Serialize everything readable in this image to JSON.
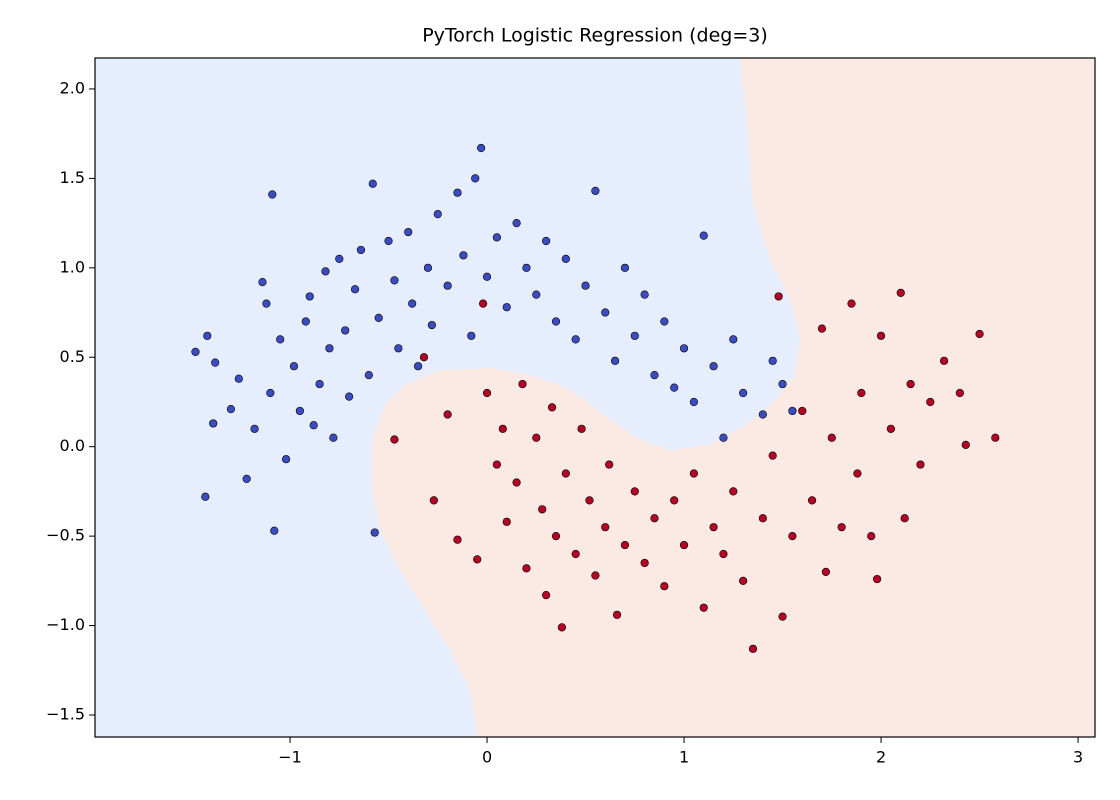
{
  "chart_data": {
    "type": "scatter",
    "title": "PyTorch Logistic Regression (deg=3)",
    "xlim": [
      -1.99,
      3.086
    ],
    "ylim": [
      -1.623,
      2.173
    ],
    "xticks": [
      {
        "value": -1,
        "label": "−1"
      },
      0,
      1,
      2,
      3
    ],
    "yticks": [
      {
        "value": -1.5,
        "label": "−1.5"
      },
      {
        "value": -1.0,
        "label": "−1.0"
      },
      {
        "value": -0.5,
        "label": "−0.5"
      },
      {
        "value": 0,
        "label": "0.0"
      },
      0.5,
      {
        "value": 1.0,
        "label": "1.0"
      },
      1.5,
      {
        "value": 2.0,
        "label": "2.0"
      }
    ],
    "series": [
      {
        "color": "#3b4cc0",
        "x": [
          -1.48,
          -1.42,
          -1.38,
          -1.43,
          -1.39,
          -1.3,
          -1.26,
          -1.22,
          -1.18,
          -1.14,
          -1.12,
          -1.1,
          -1.09,
          -1.08,
          -1.05,
          -1.02,
          -0.98,
          -0.95,
          -0.92,
          -0.9,
          -0.88,
          -0.85,
          -0.82,
          -0.8,
          -0.78,
          -0.75,
          -0.72,
          -0.7,
          -0.67,
          -0.64,
          -0.6,
          -0.58,
          -0.57,
          -0.55,
          -0.5,
          -0.47,
          -0.45,
          -0.4,
          -0.38,
          -0.35,
          -0.3,
          -0.28,
          -0.25,
          -0.2,
          -0.15,
          -0.12,
          -0.08,
          -0.06,
          -0.03,
          0.0,
          0.05,
          0.1,
          0.15,
          0.2,
          0.25,
          0.3,
          0.35,
          0.4,
          0.45,
          0.5,
          0.55,
          0.6,
          0.65,
          0.7,
          0.75,
          0.8,
          0.85,
          0.9,
          0.95,
          1.0,
          1.05,
          1.1,
          1.15,
          1.2,
          1.25,
          1.3,
          1.4,
          1.45,
          1.5,
          1.55
        ],
        "values": [
          0.53,
          0.62,
          0.47,
          -0.28,
          0.13,
          0.21,
          0.38,
          -0.18,
          0.1,
          0.92,
          0.8,
          0.3,
          1.41,
          -0.47,
          0.6,
          -0.07,
          0.45,
          0.2,
          0.7,
          0.84,
          0.12,
          0.35,
          0.98,
          0.55,
          0.05,
          1.05,
          0.65,
          0.28,
          0.88,
          1.1,
          0.4,
          1.47,
          -0.48,
          0.72,
          1.15,
          0.93,
          0.55,
          1.2,
          0.8,
          0.45,
          1.0,
          0.68,
          1.3,
          0.9,
          1.42,
          1.07,
          0.62,
          1.5,
          1.67,
          0.95,
          1.17,
          0.78,
          1.25,
          1.0,
          0.85,
          1.15,
          0.7,
          1.05,
          0.6,
          0.9,
          1.43,
          0.75,
          0.48,
          1.0,
          0.62,
          0.85,
          0.4,
          0.7,
          0.33,
          0.55,
          0.25,
          1.18,
          0.45,
          0.05,
          0.6,
          0.3,
          0.18,
          0.48,
          0.35,
          0.2
        ]
      },
      {
        "color": "#b40426",
        "x": [
          -0.47,
          -0.32,
          -0.27,
          -0.2,
          -0.15,
          -0.05,
          -0.02,
          0.0,
          0.05,
          0.08,
          0.1,
          0.15,
          0.18,
          0.2,
          0.25,
          0.28,
          0.3,
          0.33,
          0.35,
          0.38,
          0.4,
          0.45,
          0.48,
          0.52,
          0.55,
          0.6,
          0.62,
          0.66,
          0.7,
          0.75,
          0.8,
          0.85,
          0.9,
          0.95,
          1.0,
          1.05,
          1.1,
          1.15,
          1.2,
          1.25,
          1.3,
          1.35,
          1.4,
          1.45,
          1.48,
          1.5,
          1.55,
          1.6,
          1.65,
          1.7,
          1.72,
          1.75,
          1.8,
          1.85,
          1.88,
          1.9,
          1.95,
          1.98,
          2.0,
          2.05,
          2.1,
          2.12,
          2.15,
          2.2,
          2.25,
          2.32,
          2.4,
          2.43,
          2.5,
          2.58
        ],
        "values": [
          0.04,
          0.5,
          -0.3,
          0.18,
          -0.52,
          -0.63,
          0.8,
          0.3,
          -0.1,
          0.1,
          -0.42,
          -0.2,
          0.35,
          -0.68,
          0.05,
          -0.35,
          -0.83,
          0.22,
          -0.5,
          -1.01,
          -0.15,
          -0.6,
          0.1,
          -0.3,
          -0.72,
          -0.45,
          -0.1,
          -0.94,
          -0.55,
          -0.25,
          -0.65,
          -0.4,
          -0.78,
          -0.3,
          -0.55,
          -0.15,
          -0.9,
          -0.45,
          -0.6,
          -0.25,
          -0.75,
          -1.13,
          -0.4,
          -0.05,
          0.84,
          -0.95,
          -0.5,
          0.2,
          -0.3,
          0.66,
          -0.7,
          0.05,
          -0.45,
          0.8,
          -0.15,
          0.3,
          -0.5,
          -0.74,
          0.62,
          0.1,
          0.86,
          -0.4,
          0.35,
          -0.1,
          0.25,
          0.48,
          0.3,
          0.01,
          0.63,
          0.05
        ]
      }
    ]
  }
}
